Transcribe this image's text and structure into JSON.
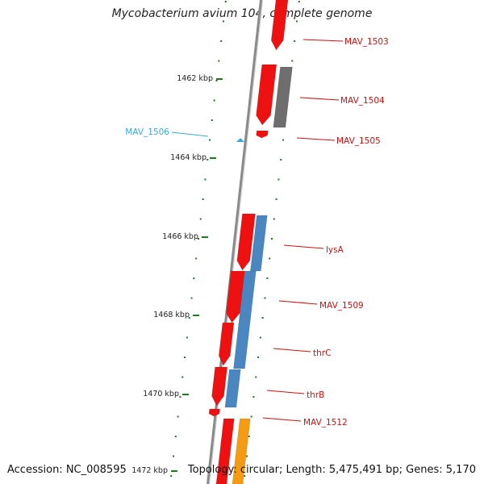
{
  "title": "Mycobacterium avium 104, complete genome",
  "footer": {
    "accession": "Accession: NC_008595",
    "topology": "Topology: circular; Length: 5,475,491 bp; Genes: 5,170"
  },
  "colors": {
    "backbone": "#8a8a8a",
    "forward_cds": "#ee1111",
    "reverse_cds": "#4a86c0",
    "other_gene": "#6e6e6e",
    "rna_gene": "#f59a13",
    "gene_label": "#cc1111",
    "selected_label": "#3aa8d8",
    "tick": "#1f7a1f",
    "tick_label": "#222222"
  },
  "ticks": [
    {
      "label": "1462 kbp"
    },
    {
      "label": "1464 kbp"
    },
    {
      "label": "1466 kbp"
    },
    {
      "label": "1468 kbp"
    },
    {
      "label": "1470 kbp"
    },
    {
      "label": "1472 kbp"
    }
  ],
  "gene_labels": [
    {
      "name": "MAV_1503",
      "color_key": "gene_label"
    },
    {
      "name": "MAV_1504",
      "color_key": "gene_label"
    },
    {
      "name": "MAV_1505",
      "color_key": "gene_label"
    },
    {
      "name": "MAV_1506",
      "color_key": "selected_label"
    },
    {
      "name": "lysA",
      "color_key": "gene_label"
    },
    {
      "name": "MAV_1509",
      "color_key": "gene_label"
    },
    {
      "name": "thrC",
      "color_key": "gene_label"
    },
    {
      "name": "thrB",
      "color_key": "gene_label"
    },
    {
      "name": "MAV_1512",
      "color_key": "gene_label"
    }
  ]
}
